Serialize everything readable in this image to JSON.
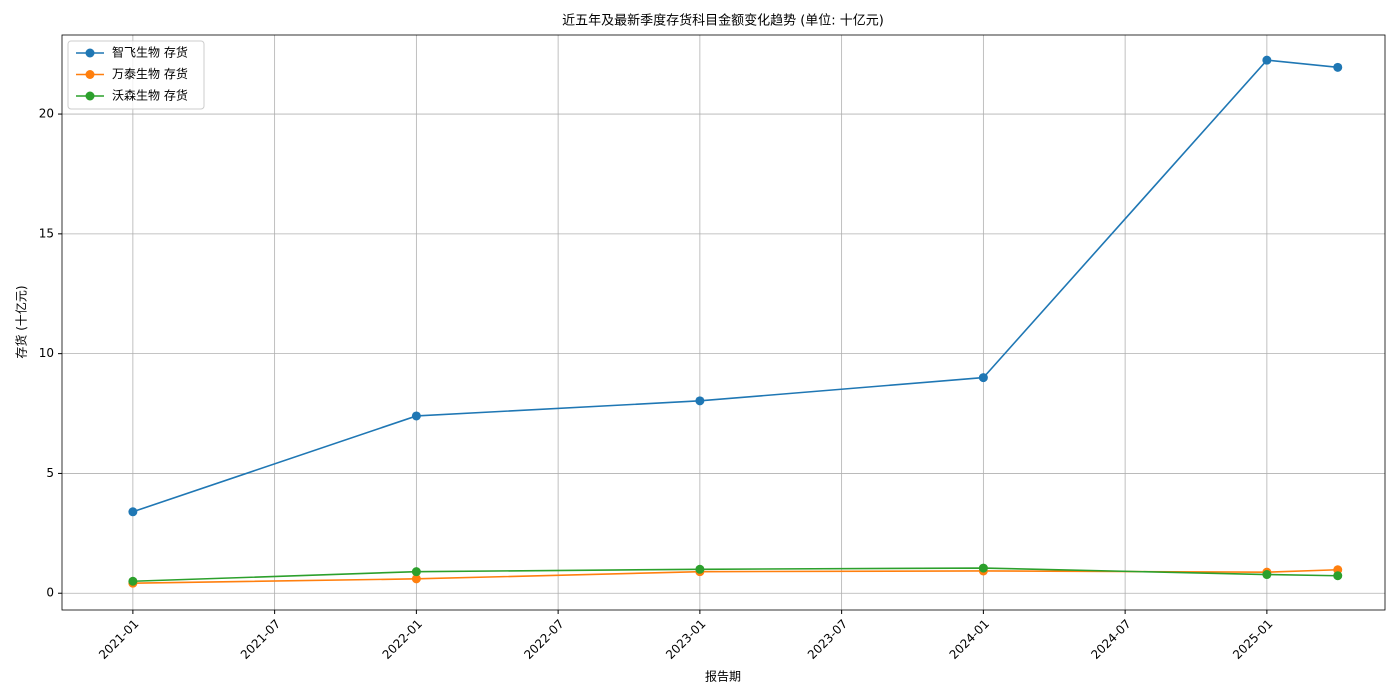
{
  "chart_data": {
    "type": "line",
    "title": "近五年及最新季度存货科目金额变化趋势 (单位: 十亿元)",
    "x_label": "报告期",
    "y_label": "存货 (十亿元)",
    "x": [
      "2021-01",
      "2022-01",
      "2023-01",
      "2024-01",
      "2025-01",
      "2025-04"
    ],
    "series": [
      {
        "name": "智飞生物 存货",
        "color": "#1f77b4",
        "values": [
          3.4,
          7.4,
          8.03,
          9.0,
          22.25,
          21.95
        ]
      },
      {
        "name": "万泰生物 存货",
        "color": "#ff7f0e",
        "values": [
          0.42,
          0.6,
          0.9,
          0.93,
          0.88,
          0.98
        ]
      },
      {
        "name": "沃森生物 存货",
        "color": "#2ca02c",
        "values": [
          0.5,
          0.9,
          1.0,
          1.05,
          0.78,
          0.73
        ]
      }
    ],
    "xlim": [
      "2020-10",
      "2025-06"
    ],
    "xticks": [
      "2021-01",
      "2021-07",
      "2022-01",
      "2022-07",
      "2023-01",
      "2023-07",
      "2024-01",
      "2024-07",
      "2025-01"
    ],
    "ylim": [
      -0.7,
      23.3
    ],
    "yticks": [
      0,
      5,
      10,
      15,
      20
    ],
    "grid": true,
    "legend": "upper-left"
  }
}
